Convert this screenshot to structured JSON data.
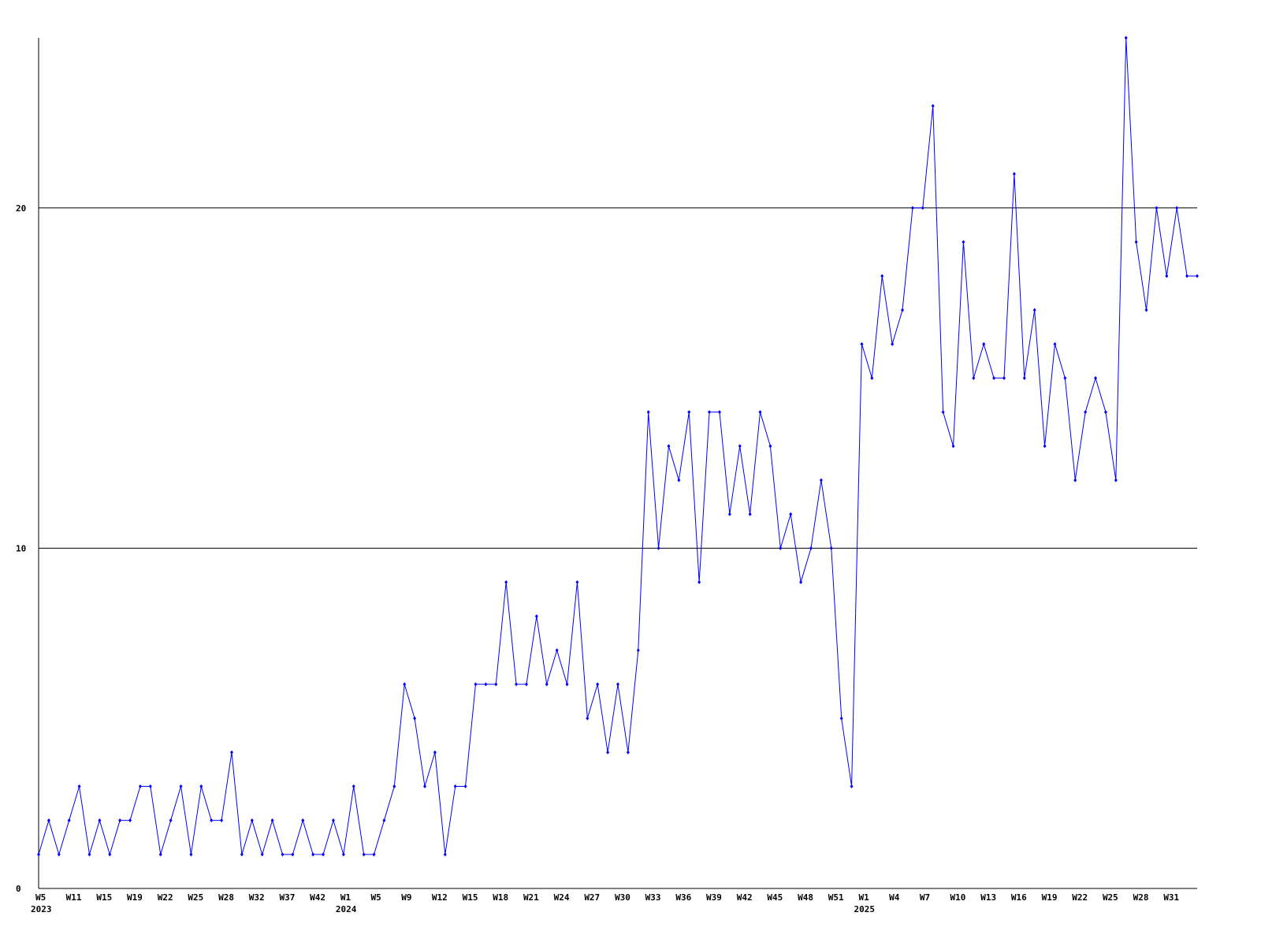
{
  "chart_data": {
    "type": "line",
    "categories": [
      "W5",
      null,
      null,
      "W11",
      null,
      null,
      "W15",
      null,
      null,
      "W19",
      null,
      null,
      "W22",
      null,
      null,
      "W25",
      null,
      null,
      "W28",
      null,
      null,
      "W32",
      null,
      null,
      "W37",
      null,
      null,
      "W42",
      null,
      null,
      "W1",
      null,
      null,
      "W5",
      null,
      null,
      "W9",
      null,
      null,
      "W12",
      null,
      null,
      "W15",
      null,
      null,
      "W18",
      null,
      null,
      "W21",
      null,
      null,
      "W24",
      null,
      null,
      "W27",
      null,
      null,
      "W30",
      null,
      null,
      "W33",
      null,
      null,
      "W36",
      null,
      null,
      "W39",
      null,
      null,
      "W42",
      null,
      null,
      "W45",
      null,
      null,
      "W48",
      null,
      null,
      "W51",
      null,
      null,
      "W1",
      null,
      null,
      "W4",
      null,
      null,
      "W7",
      null,
      null,
      "W10",
      null,
      null,
      "W13",
      null,
      null,
      "W16",
      null,
      null,
      "W19",
      null,
      null,
      "W22",
      null,
      null,
      "W25",
      null,
      null,
      "W28",
      null,
      null,
      "W31",
      null,
      null,
      null
    ],
    "year_labels": [
      "2023",
      null,
      null,
      null,
      null,
      null,
      null,
      null,
      null,
      null,
      null,
      null,
      null,
      null,
      null,
      null,
      null,
      null,
      null,
      null,
      null,
      null,
      null,
      null,
      null,
      null,
      null,
      null,
      null,
      null,
      "2024",
      null,
      null,
      null,
      null,
      null,
      null,
      null,
      null,
      null,
      null,
      null,
      null,
      null,
      null,
      null,
      null,
      null,
      null,
      null,
      null,
      null,
      null,
      null,
      null,
      null,
      null,
      null,
      null,
      null,
      null,
      null,
      null,
      null,
      null,
      null,
      null,
      null,
      null,
      null,
      null,
      null,
      null,
      null,
      null,
      null,
      null,
      null,
      null,
      null,
      null,
      "2025",
      null,
      null,
      null,
      null,
      null,
      null,
      null,
      null,
      null,
      null,
      null,
      null,
      null,
      null,
      null,
      null,
      null,
      null,
      null,
      null,
      null,
      null,
      null,
      null,
      null,
      null,
      null,
      null,
      null,
      null,
      null,
      null,
      null,
      null
    ],
    "series": [
      {
        "color": "#0000ff",
        "values": [
          1,
          2,
          1,
          2,
          3,
          1,
          2,
          1,
          2,
          2,
          3,
          3,
          1,
          2,
          3,
          1,
          3,
          2,
          2,
          4,
          1,
          2,
          1,
          2,
          1,
          1,
          2,
          1,
          1,
          2,
          1,
          3,
          1,
          1,
          2,
          3,
          6,
          5,
          3,
          4,
          1,
          3,
          3,
          6,
          6,
          6,
          9,
          6,
          6,
          8,
          6,
          7,
          6,
          9,
          5,
          6,
          4,
          6,
          4,
          7,
          14,
          10,
          13,
          12,
          14,
          9,
          14,
          14,
          11,
          13,
          11,
          14,
          13,
          10,
          11,
          9,
          10,
          12,
          10,
          5,
          3,
          16,
          15,
          18,
          16,
          17,
          20,
          20,
          23,
          14,
          13,
          19,
          15,
          16,
          15,
          15,
          21,
          15,
          17,
          13,
          16,
          15,
          12,
          14,
          15,
          14,
          12,
          25,
          19,
          17,
          20,
          18,
          20,
          18,
          18
        ]
      }
    ],
    "ylim": [
      0,
      25
    ],
    "yticks": [
      0,
      10,
      20
    ],
    "grid": true
  }
}
